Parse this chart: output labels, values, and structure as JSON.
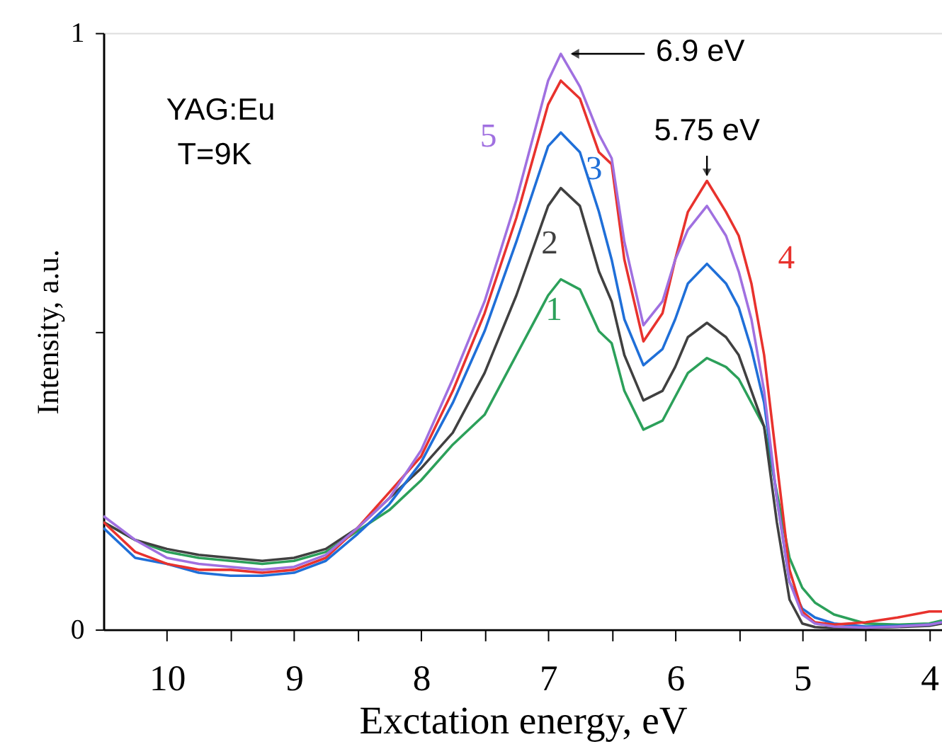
{
  "chart_data": {
    "type": "line",
    "xlabel": "Exctation energy, eV",
    "ylabel": "Intensity, a.u.",
    "x": [
      10.5,
      10.25,
      10,
      9.75,
      9.5,
      9.25,
      9,
      8.75,
      8.5,
      8.25,
      8,
      7.75,
      7.5,
      7.25,
      7,
      6.9,
      6.75,
      6.6,
      6.5,
      6.4,
      6.25,
      6.1,
      6,
      5.9,
      5.75,
      5.6,
      5.5,
      5.4,
      5.3,
      5.2,
      5.1,
      5,
      4.9,
      4.75,
      4.5,
      4.25,
      4,
      3.9
    ],
    "series": [
      {
        "name": "1",
        "color": "#2ca05a",
        "values": [
          0.18,
          0.15,
          0.13,
          0.12,
          0.115,
          0.11,
          0.115,
          0.13,
          0.165,
          0.2,
          0.25,
          0.31,
          0.36,
          0.46,
          0.56,
          0.587,
          0.57,
          0.5,
          0.48,
          0.4,
          0.335,
          0.35,
          0.39,
          0.43,
          0.455,
          0.44,
          0.42,
          0.38,
          0.34,
          0.23,
          0.12,
          0.07,
          0.045,
          0.025,
          0.01,
          0.008,
          0.01,
          0.015
        ]
      },
      {
        "name": "2",
        "color": "#404040",
        "values": [
          0.18,
          0.15,
          0.135,
          0.125,
          0.12,
          0.115,
          0.12,
          0.135,
          0.17,
          0.22,
          0.27,
          0.33,
          0.43,
          0.56,
          0.71,
          0.74,
          0.71,
          0.6,
          0.55,
          0.46,
          0.384,
          0.4,
          0.44,
          0.49,
          0.514,
          0.49,
          0.46,
          0.4,
          0.34,
          0.18,
          0.05,
          0.01,
          0.004,
          0.002,
          0.002,
          0.004,
          0.006,
          0.01
        ]
      },
      {
        "name": "3",
        "color": "#1f6fd8",
        "values": [
          0.17,
          0.12,
          0.11,
          0.095,
          0.09,
          0.09,
          0.095,
          0.115,
          0.16,
          0.21,
          0.28,
          0.38,
          0.5,
          0.65,
          0.81,
          0.833,
          0.8,
          0.7,
          0.62,
          0.52,
          0.443,
          0.47,
          0.52,
          0.58,
          0.613,
          0.58,
          0.54,
          0.47,
          0.38,
          0.22,
          0.08,
          0.035,
          0.02,
          0.01,
          0.005,
          0.006,
          0.008,
          0.012
        ]
      },
      {
        "name": "4",
        "color": "#e8322d",
        "values": [
          0.18,
          0.13,
          0.11,
          0.1,
          0.1,
          0.095,
          0.1,
          0.12,
          0.17,
          0.23,
          0.29,
          0.4,
          0.53,
          0.69,
          0.88,
          0.92,
          0.89,
          0.8,
          0.78,
          0.62,
          0.483,
          0.53,
          0.62,
          0.7,
          0.752,
          0.7,
          0.66,
          0.58,
          0.46,
          0.28,
          0.1,
          0.03,
          0.012,
          0.008,
          0.012,
          0.02,
          0.03,
          0.03
        ]
      },
      {
        "name": "5",
        "color": "#a070e0",
        "values": [
          0.19,
          0.15,
          0.12,
          0.11,
          0.105,
          0.1,
          0.105,
          0.125,
          0.17,
          0.22,
          0.3,
          0.42,
          0.55,
          0.72,
          0.92,
          0.965,
          0.91,
          0.83,
          0.79,
          0.65,
          0.51,
          0.55,
          0.62,
          0.67,
          0.71,
          0.66,
          0.6,
          0.52,
          0.4,
          0.22,
          0.08,
          0.025,
          0.01,
          0.005,
          0.003,
          0.005,
          0.008,
          0.012
        ]
      }
    ],
    "xlim": [
      10.5,
      3.9
    ],
    "xticks": [
      10,
      {
        "value": 9.5,
        "label": null
      },
      9,
      {
        "value": 8.5,
        "label": null
      },
      8,
      {
        "value": 7.5,
        "label": null
      },
      7,
      {
        "value": 6.5,
        "label": null
      },
      6,
      {
        "value": 5.5,
        "label": null
      },
      5,
      {
        "value": 4.5,
        "label": null
      },
      4
    ],
    "ylim": [
      0,
      1
    ],
    "yticks": [
      0,
      {
        "value": 0.5,
        "label": null
      },
      1
    ],
    "grid": false,
    "legend": false,
    "annotations": [
      "YAG:Eu",
      "T=9K",
      {
        "text": "6.9 eV",
        "x": 6.9,
        "y": 0.965
      },
      {
        "text": "5.75 eV",
        "x": 5.75,
        "y": 0.752
      }
    ]
  }
}
